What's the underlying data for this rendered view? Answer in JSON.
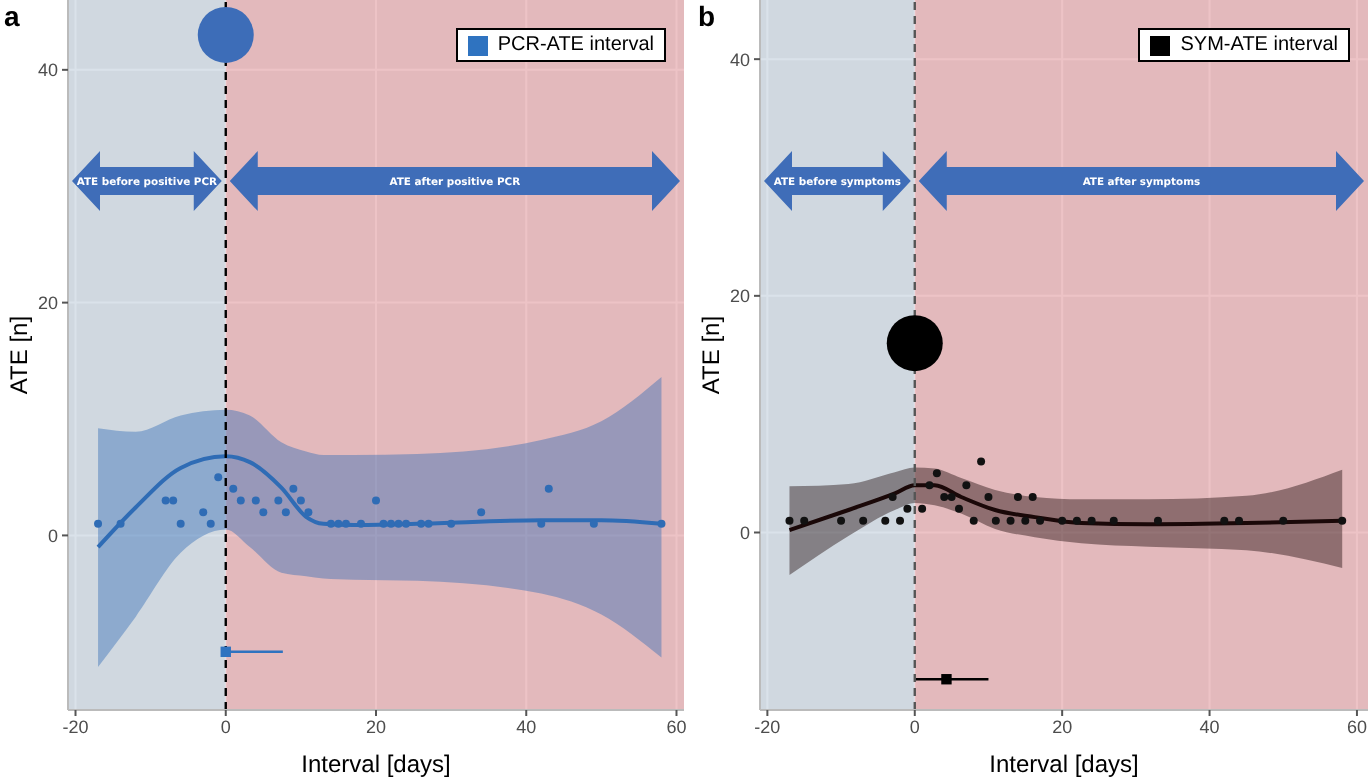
{
  "chart_data": [
    {
      "type": "scatter",
      "title": "a",
      "xlabel": "Interval [days]",
      "ylabel": "ATE [n]",
      "xlim": [
        -21,
        61
      ],
      "xticks": [
        -20,
        0,
        20,
        40,
        60
      ],
      "ylim": [
        -15,
        46
      ],
      "yticks": [
        0,
        20,
        40
      ],
      "grid": true,
      "legend": "top right",
      "bands": [
        {
          "axis": "x",
          "from": -21,
          "to": 0,
          "label": "ATE before positive PCR",
          "color": "#b5c5d5"
        },
        {
          "axis": "x",
          "from": 0,
          "to": 61,
          "label": "ATE after positive PCR",
          "color": "#db878d"
        }
      ],
      "ref_lines": [
        {
          "axis": "x",
          "value": 0,
          "color": "#000000",
          "line_style": "dashed"
        }
      ],
      "series": [
        {
          "type": "line",
          "color": "#2f6cb5",
          "x": [
            -17,
            -12,
            -6,
            0,
            3.2,
            7.4,
            10.7,
            13,
            17,
            25.5,
            42,
            50,
            58
          ],
          "values": [
            -1,
            2.4,
            5.8,
            6.8,
            6.3,
            4.1,
            1.6,
            1,
            0.9,
            1,
            1.3,
            1.3,
            1
          ],
          "lower": [
            -11.3,
            -7,
            -1.5,
            0.5,
            -1,
            -3.2,
            -3.5,
            -3.7,
            -3.8,
            -3.9,
            -5,
            -6.8,
            -10.5
          ],
          "upper": [
            9.2,
            8.9,
            10.3,
            10.8,
            10.3,
            8,
            7.2,
            6.9,
            6.9,
            7,
            8.2,
            9.8,
            13.6
          ]
        },
        {
          "type": "scatter",
          "marker": "circle",
          "color": "#2f6cb5",
          "x": [
            -17,
            -14,
            -8,
            -7,
            -6,
            -3,
            -2,
            -1,
            1,
            2,
            4,
            5,
            7,
            8,
            9,
            10,
            11,
            14,
            15,
            16,
            18,
            20,
            21,
            22,
            23,
            24,
            26,
            27,
            30,
            34,
            42,
            43,
            49,
            58
          ],
          "values": [
            1,
            1,
            3,
            3,
            1,
            2,
            1,
            5,
            4,
            3,
            3,
            2,
            3,
            2,
            4,
            3,
            2,
            1,
            1,
            1,
            1,
            3,
            1,
            1,
            1,
            1,
            1,
            1,
            1,
            2,
            1,
            4,
            1,
            1
          ]
        },
        {
          "type": "bubble",
          "color": "#3d6db8",
          "x": [
            0
          ],
          "values": [
            43
          ],
          "sizes": [
            1
          ]
        },
        {
          "type": "scatter",
          "name": "PCR-ATE interval",
          "marker": "square",
          "color": "#2f73c0",
          "x": [
            0
          ],
          "values": [
            -10
          ],
          "xerrors": [
            [
              0,
              7.6
            ]
          ]
        }
      ]
    },
    {
      "type": "scatter",
      "title": "b",
      "xlabel": "Interval [days]",
      "ylabel": "ATE [n]",
      "xlim": [
        -21,
        61.5
      ],
      "xticks": [
        -20,
        0,
        20,
        40,
        60
      ],
      "ylim": [
        -15,
        45
      ],
      "yticks": [
        0,
        20,
        40
      ],
      "grid": true,
      "legend": "top right",
      "bands": [
        {
          "axis": "x",
          "from": -21,
          "to": 0,
          "label": "ATE before symptoms",
          "color": "#b5c5d5"
        },
        {
          "axis": "x",
          "from": 0,
          "to": 61.5,
          "label": "ATE after symptoms",
          "color": "#db878d"
        }
      ],
      "ref_lines": [
        {
          "axis": "x",
          "value": 0,
          "color": "#555555",
          "line_style": "dashed"
        }
      ],
      "series": [
        {
          "type": "line",
          "color": "#1a0808",
          "x": [
            -17,
            -9,
            -2.7,
            0,
            2.7,
            6.3,
            10.9,
            16.3,
            22.6,
            31.7,
            45,
            58
          ],
          "values": [
            0.2,
            1.9,
            3.3,
            4,
            4,
            3,
            1.9,
            1.3,
            0.8,
            0.7,
            0.8,
            1
          ],
          "lower": [
            -3.6,
            -0.3,
            1.9,
            2.5,
            2.3,
            1.6,
            0.3,
            -0.4,
            -0.9,
            -1.2,
            -1.5,
            -3
          ],
          "upper": [
            3.9,
            4.1,
            5.1,
            5.5,
            5.4,
            4.6,
            3.6,
            3,
            2.8,
            2.8,
            3.1,
            5.3
          ]
        },
        {
          "type": "scatter",
          "marker": "circle",
          "color": "#111111",
          "x": [
            -17,
            -15,
            -10,
            -7,
            -4,
            -3,
            -2,
            -1,
            1,
            2,
            3,
            4,
            5,
            6,
            7,
            8,
            9,
            10,
            11,
            13,
            14,
            15,
            16,
            17,
            20,
            22,
            24,
            27,
            33,
            42,
            44,
            50,
            58
          ],
          "values": [
            1,
            1,
            1,
            1,
            1,
            3,
            1,
            2,
            2,
            4,
            5,
            3,
            3,
            2,
            4,
            1,
            6,
            3,
            1,
            1,
            3,
            1,
            3,
            1,
            1,
            1,
            1,
            1,
            1,
            1,
            1,
            1,
            1
          ]
        },
        {
          "type": "bubble",
          "color": "#000000",
          "x": [
            0
          ],
          "values": [
            16
          ],
          "sizes": [
            1
          ]
        },
        {
          "type": "scatter",
          "name": "SYM-ATE interval",
          "marker": "square",
          "color": "#000000",
          "x": [
            4.3
          ],
          "values": [
            -12.4
          ],
          "xerrors": [
            [
              0,
              10
            ]
          ]
        }
      ]
    }
  ]
}
